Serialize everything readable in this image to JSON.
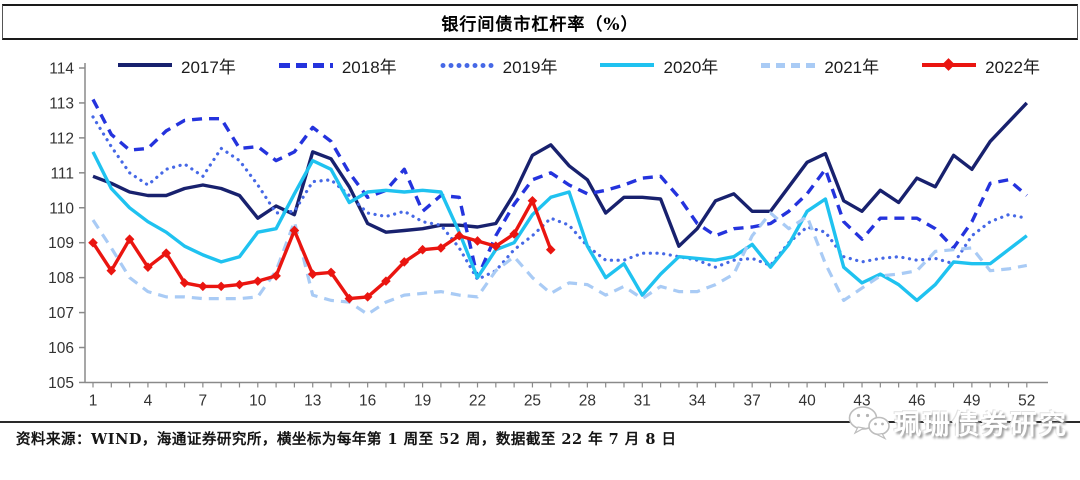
{
  "header": {
    "title": "银行间债市杠杆率（%）"
  },
  "footer": {
    "source_note": "资料来源：WIND，海通证券研究所，横坐标为每年第 1 周至 52 周，数据截至 22 年 7 月 8 日"
  },
  "watermark": {
    "icon": "wechat-icon",
    "text": "珮珊债券研究"
  },
  "chart_data": {
    "type": "line",
    "title": "银行间债市杠杆率（%）",
    "xlabel": "",
    "ylabel": "",
    "x_range": [
      1,
      52
    ],
    "x_tick_labels": [
      "1",
      "4",
      "7",
      "10",
      "13",
      "16",
      "19",
      "22",
      "25",
      "28",
      "31",
      "34",
      "37",
      "40",
      "43",
      "46",
      "49",
      "52"
    ],
    "ylim": [
      105,
      114
    ],
    "y_ticks": [
      105,
      106,
      107,
      108,
      109,
      110,
      111,
      112,
      113,
      114
    ],
    "grid": false,
    "legend_position": "top",
    "axis_color": "#8a8a8a",
    "tick_label_color": "#333333",
    "series": [
      {
        "name": "2017年",
        "color": "#18216e",
        "style": "solid",
        "width": 3.4,
        "values": [
          110.9,
          110.7,
          110.45,
          110.35,
          110.35,
          110.55,
          110.65,
          110.55,
          110.35,
          109.7,
          110.05,
          109.8,
          111.6,
          111.4,
          110.6,
          109.55,
          109.3,
          109.35,
          109.4,
          109.5,
          109.5,
          109.45,
          109.55,
          110.4,
          111.5,
          111.8,
          111.2,
          110.8,
          109.85,
          110.3,
          110.3,
          110.25,
          108.9,
          109.4,
          110.2,
          110.4,
          109.9,
          109.9,
          110.6,
          111.3,
          111.55,
          110.2,
          109.9,
          110.5,
          110.15,
          110.85,
          110.6,
          111.5,
          111.1,
          111.9,
          112.45,
          113.0
        ]
      },
      {
        "name": "2018年",
        "color": "#2433dd",
        "style": "dashed",
        "width": 3.4,
        "values": [
          113.1,
          112.1,
          111.65,
          111.7,
          112.2,
          112.5,
          112.55,
          112.55,
          111.7,
          111.75,
          111.35,
          111.6,
          112.3,
          111.9,
          111.0,
          110.3,
          110.5,
          111.1,
          109.9,
          110.35,
          110.3,
          108.0,
          109.2,
          110.1,
          110.8,
          111.0,
          110.65,
          110.4,
          110.5,
          110.65,
          110.85,
          110.9,
          110.3,
          109.55,
          109.2,
          109.4,
          109.45,
          109.55,
          109.9,
          110.4,
          111.1,
          109.6,
          109.1,
          109.7,
          109.7,
          109.7,
          109.4,
          108.85,
          109.6,
          110.7,
          110.8,
          110.35
        ]
      },
      {
        "name": "2019年",
        "color": "#4668e6",
        "style": "dotted",
        "width": 3.2,
        "values": [
          112.6,
          111.75,
          111.0,
          110.65,
          111.1,
          111.25,
          110.9,
          111.7,
          111.35,
          110.65,
          109.85,
          109.9,
          110.75,
          110.8,
          110.35,
          109.85,
          109.75,
          109.9,
          109.6,
          109.5,
          108.85,
          107.95,
          108.2,
          108.8,
          109.2,
          109.7,
          109.5,
          108.9,
          108.5,
          108.5,
          108.7,
          108.7,
          108.6,
          108.5,
          108.3,
          108.5,
          108.55,
          108.35,
          109.0,
          109.45,
          109.3,
          108.6,
          108.45,
          108.55,
          108.6,
          108.5,
          108.55,
          108.4,
          109.2,
          109.6,
          109.8,
          109.7
        ]
      },
      {
        "name": "2020年",
        "color": "#1fc2f0",
        "style": "solid",
        "width": 3.4,
        "values": [
          111.6,
          110.55,
          110.0,
          109.6,
          109.3,
          108.9,
          108.65,
          108.45,
          108.6,
          109.3,
          109.4,
          110.4,
          111.35,
          111.1,
          110.15,
          110.45,
          110.5,
          110.45,
          110.5,
          110.45,
          109.3,
          108.0,
          108.8,
          109.0,
          109.8,
          110.3,
          110.45,
          108.9,
          108.0,
          108.4,
          107.5,
          108.1,
          108.6,
          108.55,
          108.5,
          108.6,
          108.95,
          108.3,
          108.95,
          109.9,
          110.25,
          108.3,
          107.85,
          108.1,
          107.8,
          107.35,
          107.8,
          108.45,
          108.4,
          108.4,
          108.8,
          109.2
        ]
      },
      {
        "name": "2021年",
        "color": "#a9cbf5",
        "style": "dashed",
        "width": 3.2,
        "values": [
          109.65,
          108.85,
          108.0,
          107.6,
          107.45,
          107.45,
          107.4,
          107.4,
          107.4,
          107.45,
          108.2,
          109.6,
          107.5,
          107.35,
          107.3,
          106.95,
          107.3,
          107.5,
          107.55,
          107.6,
          107.5,
          107.45,
          108.2,
          108.6,
          108.0,
          107.55,
          107.85,
          107.8,
          107.5,
          107.75,
          107.4,
          107.75,
          107.6,
          107.6,
          107.8,
          108.1,
          109.2,
          109.85,
          109.4,
          109.75,
          108.4,
          107.35,
          107.7,
          108.05,
          108.1,
          108.2,
          108.75,
          108.8,
          108.85,
          108.2,
          108.25,
          108.35
        ]
      },
      {
        "name": "2022年",
        "color": "#ea1510",
        "style": "solid",
        "width": 3.4,
        "marker": "diamond",
        "values": [
          109.0,
          108.2,
          109.1,
          108.3,
          108.7,
          107.85,
          107.75,
          107.75,
          107.8,
          107.9,
          108.05,
          109.35,
          108.1,
          108.15,
          107.4,
          107.45,
          107.9,
          108.45,
          108.8,
          108.85,
          109.2,
          109.05,
          108.9,
          109.25,
          110.2,
          108.8
        ]
      }
    ]
  }
}
